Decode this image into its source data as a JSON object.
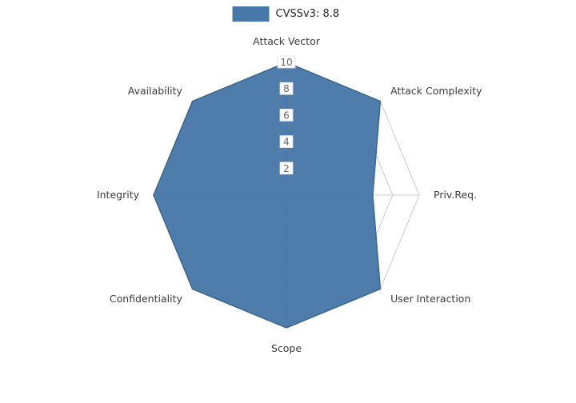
{
  "chart_data": {
    "type": "radar",
    "title": "",
    "legend": {
      "label": "CVSSv3: 8.8",
      "position": "top-center"
    },
    "categories": [
      "Attack Vector",
      "Attack Complexity",
      "Priv.Req.",
      "User Interaction",
      "Scope",
      "Confidentiality",
      "Integrity",
      "Availability"
    ],
    "values": [
      10,
      10,
      6.5,
      10,
      10,
      10,
      10,
      10
    ],
    "rmax": 10,
    "rmin": 0,
    "ticks": [
      2,
      4,
      6,
      8,
      10
    ],
    "grid": true,
    "colors": {
      "fill": "#4878a8",
      "stroke": "#3a678f",
      "grid": "#cccccc",
      "spoke": "#cccccc",
      "axis_label": "#3c3c3c",
      "tick_label": "#666666",
      "tick_bg": "#ffffff",
      "tick_bg_border": "#e2e2e2"
    }
  }
}
